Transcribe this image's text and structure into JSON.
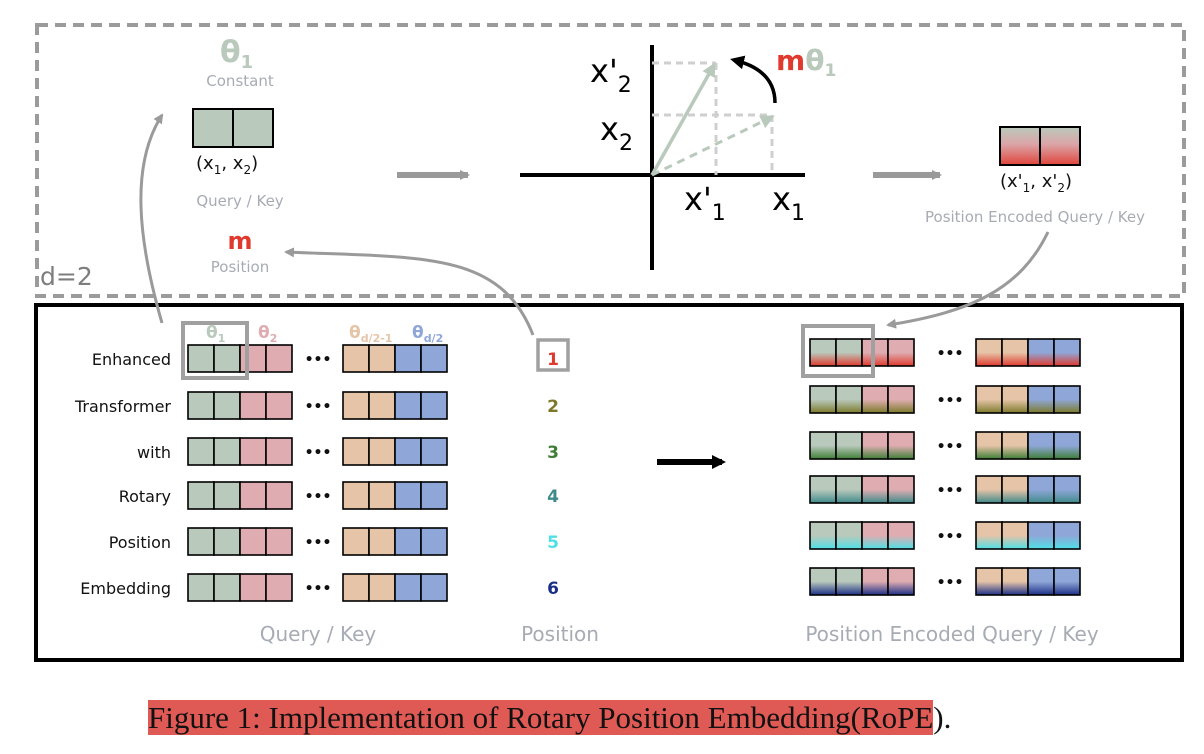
{
  "colors": {
    "theta1": "#b9c9bc",
    "theta2": "#dfadb1",
    "theta_d2_1": "#e6c4a8",
    "theta_d2": "#8fa7d8",
    "red": "#e03a2e",
    "gray_text": "#a7acb4",
    "dashed_frame": "#9b9b9b",
    "position_colors": [
      "#e03a2e",
      "#7c7a2a",
      "#3e7e36",
      "#3f8a8a",
      "#4fe0e6",
      "#1c2f86"
    ]
  },
  "top_panel": {
    "dim_label": "d=2",
    "theta_symbol": "θ",
    "theta_sub": "1",
    "constant_label": "Constant",
    "pair_label_main": "(x",
    "pair_sub1": "1",
    "pair_mid": ", x",
    "pair_sub2": "2",
    "pair_end": ")",
    "query_key_label": "Query / Key",
    "m_symbol": "m",
    "position_label": "Position",
    "rotation_m": "m",
    "rotation_theta": "θ",
    "rotation_sub": "1",
    "axis_x2p": "x'",
    "axis_x2p_sub": "2",
    "axis_x2": "x",
    "axis_x2_sub": "2",
    "axis_x1p": "x'",
    "axis_x1p_sub": "1",
    "axis_x1": "x",
    "axis_x1_sub": "1",
    "encoded_pair_main": "(x'",
    "encoded_pair_sub1": "1",
    "encoded_pair_mid": ", x'",
    "encoded_pair_sub2": "2",
    "encoded_pair_end": ")",
    "encoded_label": "Position Encoded Query / Key"
  },
  "bottom_panel": {
    "theta_labels": [
      {
        "sym": "θ",
        "sub": "1"
      },
      {
        "sym": "θ",
        "sub": "2"
      },
      {
        "sym": "θ",
        "sub": "d/2-1"
      },
      {
        "sym": "θ",
        "sub": "d/2"
      }
    ],
    "tokens": [
      "Enhanced",
      "Transformer",
      "with",
      "Rotary",
      "Position",
      "Embedding"
    ],
    "positions": [
      "1",
      "2",
      "3",
      "4",
      "5",
      "6"
    ],
    "ellipsis": "•••",
    "query_key_label": "Query / Key",
    "position_label": "Position",
    "encoded_label": "Position Encoded Query / Key"
  },
  "caption": {
    "highlighted": "Figure 1: Implementation of Rotary Position Embedding(RoPE",
    "tail": ")."
  }
}
